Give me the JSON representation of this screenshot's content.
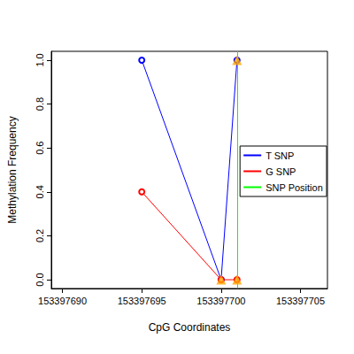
{
  "chart_data": {
    "type": "line",
    "x_label": "CpG Coordinates",
    "y_label": "Methylation Frequency",
    "xlim": [
      153397689.3,
      153397706.7
    ],
    "xticks": [
      153397690,
      153397695,
      153397700,
      153397705
    ],
    "ylim": [
      -0.04,
      1.04
    ],
    "yticks": [
      {
        "value": 0,
        "label": "0.0"
      },
      0.2,
      0.4,
      0.6,
      0.8,
      {
        "value": 1,
        "label": "1.0"
      }
    ],
    "grid": false,
    "legend": "right",
    "series": [
      {
        "name": "T SNP",
        "color": "#0000FF",
        "marker": "circle",
        "x": [
          153397695,
          153397700,
          153397701
        ],
        "values": [
          1.0,
          0.0,
          1.0
        ]
      },
      {
        "name": "G SNP",
        "color": "#FF0000",
        "marker": "circle",
        "x": [
          153397695,
          153397700,
          153397701
        ],
        "values": [
          0.4,
          0.0,
          0.0
        ]
      },
      {
        "name": "SNP Position",
        "type": "vline",
        "color": "#00FF00",
        "x": [
          153397701
        ]
      },
      {
        "type": "scatter",
        "color": "#FFA500",
        "marker": "triangle",
        "x": [
          153397700,
          153397701,
          153397701
        ],
        "values": [
          0.0,
          0.0,
          1.0
        ]
      }
    ]
  }
}
